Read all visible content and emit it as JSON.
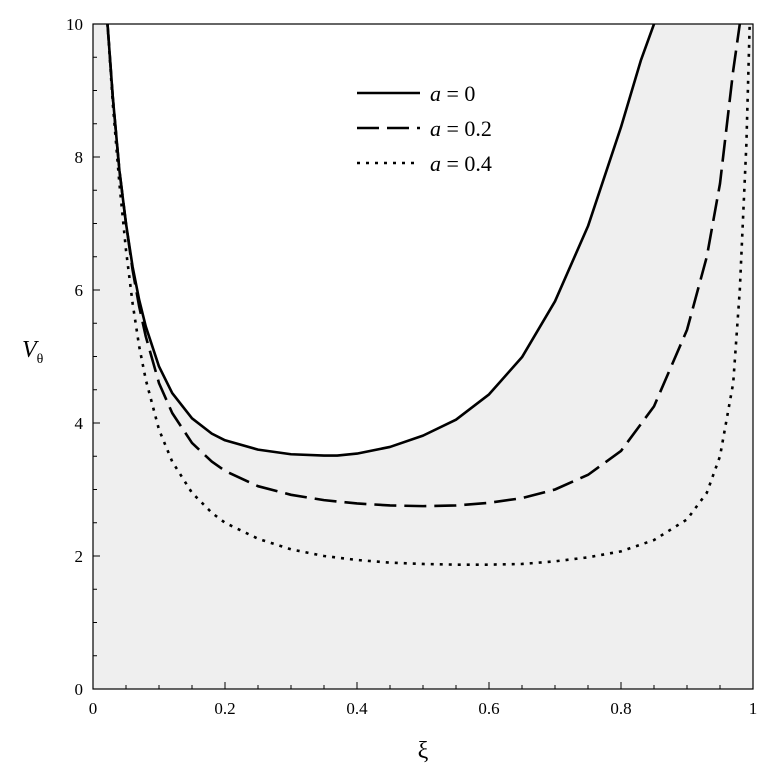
{
  "chart_data": {
    "type": "line",
    "title": "",
    "xlabel": "ξ",
    "ylabel": {
      "main": "V",
      "sub": "θ"
    },
    "xlim": [
      0,
      1
    ],
    "ylim": [
      0,
      10
    ],
    "x_ticks": [
      0,
      0.2,
      0.4,
      0.6,
      0.8,
      1
    ],
    "x_tick_labels": [
      "0",
      "0.2",
      "0.4",
      "0.6",
      "0.8",
      "1"
    ],
    "y_ticks": [
      0,
      2,
      4,
      6,
      8,
      10
    ],
    "y_tick_labels": [
      "0",
      "2",
      "4",
      "6",
      "8",
      "10"
    ],
    "grid": false,
    "legend_position": "top-center",
    "region_fill_color": "#efefef",
    "series": [
      {
        "name": "a = 0",
        "legend": {
          "var": "a",
          "rest": " = 0"
        },
        "style": "solid",
        "x": [
          0.022,
          0.03,
          0.04,
          0.05,
          0.06,
          0.07,
          0.08,
          0.1,
          0.12,
          0.15,
          0.18,
          0.2,
          0.25,
          0.3,
          0.35,
          0.37,
          0.4,
          0.45,
          0.5,
          0.55,
          0.6,
          0.65,
          0.7,
          0.75,
          0.8,
          0.83,
          0.85
        ],
        "y": [
          10,
          8.9,
          7.8,
          7.0,
          6.35,
          5.85,
          5.45,
          4.85,
          4.45,
          4.07,
          3.84,
          3.74,
          3.6,
          3.53,
          3.51,
          3.51,
          3.54,
          3.64,
          3.81,
          4.05,
          4.43,
          4.99,
          5.83,
          6.96,
          8.45,
          9.45,
          10
        ]
      },
      {
        "name": "a = 0.2",
        "legend": {
          "var": "a",
          "rest": " = 0.2"
        },
        "style": "dashed",
        "x": [
          0.022,
          0.03,
          0.04,
          0.05,
          0.06,
          0.07,
          0.08,
          0.1,
          0.12,
          0.15,
          0.18,
          0.2,
          0.25,
          0.3,
          0.35,
          0.4,
          0.45,
          0.5,
          0.55,
          0.6,
          0.65,
          0.7,
          0.75,
          0.8,
          0.85,
          0.9,
          0.93,
          0.95,
          0.97,
          0.98
        ],
        "y": [
          10,
          8.9,
          7.8,
          7.0,
          6.3,
          5.75,
          5.3,
          4.6,
          4.15,
          3.7,
          3.42,
          3.28,
          3.05,
          2.92,
          2.84,
          2.79,
          2.76,
          2.75,
          2.76,
          2.8,
          2.87,
          3.0,
          3.22,
          3.58,
          4.25,
          5.4,
          6.5,
          7.6,
          9.3,
          10
        ]
      },
      {
        "name": "a = 0.4",
        "legend": {
          "var": "a",
          "rest": " = 0.4"
        },
        "style": "dotted",
        "x": [
          0.022,
          0.03,
          0.04,
          0.05,
          0.06,
          0.07,
          0.08,
          0.1,
          0.12,
          0.15,
          0.18,
          0.2,
          0.25,
          0.3,
          0.35,
          0.4,
          0.45,
          0.5,
          0.55,
          0.6,
          0.65,
          0.7,
          0.75,
          0.8,
          0.85,
          0.9,
          0.93,
          0.95,
          0.97,
          0.98,
          0.99,
          0.995
        ],
        "y": [
          10,
          8.8,
          7.6,
          6.6,
          5.8,
          5.15,
          4.65,
          3.9,
          3.42,
          2.95,
          2.65,
          2.5,
          2.26,
          2.1,
          2.0,
          1.94,
          1.9,
          1.88,
          1.87,
          1.87,
          1.88,
          1.92,
          1.98,
          2.07,
          2.24,
          2.55,
          2.95,
          3.5,
          4.6,
          6.0,
          8.2,
          10
        ]
      }
    ]
  }
}
